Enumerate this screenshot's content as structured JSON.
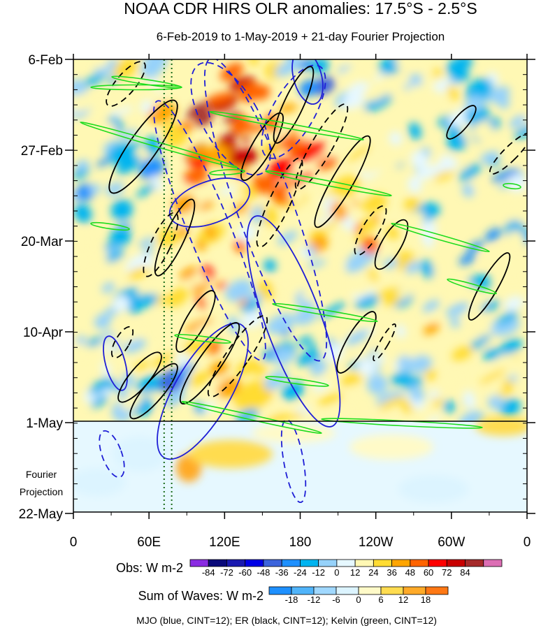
{
  "chart_data": {
    "type": "heatmap",
    "title": "NOAA CDR HIRS OLR anomalies: 17.5°S - 2.5°S",
    "subtitle": "6-Feb-2019 to 1-May-2019 + 21-day Fourier Projection",
    "x_ticks": [
      "0",
      "60E",
      "120E",
      "180",
      "120W",
      "60W",
      "0"
    ],
    "y_ticks": [
      "6-Feb",
      "27-Feb",
      "20-Mar",
      "10-Apr",
      "1-May",
      "22-May"
    ],
    "projection_label": [
      "Fourier",
      "Projection"
    ],
    "obs_colorbar": {
      "label": "Obs: W m-2",
      "levels": [
        "-84",
        "-72",
        "-60",
        "-48",
        "-36",
        "-24",
        "-12",
        "0",
        "12",
        "24",
        "36",
        "48",
        "60",
        "72",
        "84"
      ],
      "colors": [
        "#8a2be2",
        "#0a0a7a",
        "#1a1ab0",
        "#0000e6",
        "#3c64dc",
        "#1e90ff",
        "#00b4f0",
        "#96d2fa",
        "#e6f8ff",
        "#fff8b4",
        "#ffdc32",
        "#ffa500",
        "#ff6400",
        "#ff0000",
        "#c80000",
        "#a52a2a",
        "#dc6eb4"
      ]
    },
    "waves_colorbar": {
      "label": "Sum of Waves: W m-2",
      "levels": [
        "-18",
        "-12",
        "-6",
        "0",
        "6",
        "12",
        "18"
      ],
      "colors": [
        "#1e90ff",
        "#50b4fa",
        "#a0d8ff",
        "#dcf4ff",
        "#fffac8",
        "#ffdc50",
        "#ffaa28",
        "#ff7814"
      ]
    },
    "footer": "MJO (blue, CINT=12); ER (black, CINT=12); Kelvin (green, CINT=12)",
    "contour_colors": {
      "mjo": "#1f1fd6",
      "er": "#000000",
      "kelvin": "#1edc1e"
    },
    "reference_lines": {
      "longitudes_deg_e": [
        72,
        78
      ],
      "style": "dotted",
      "color": "#1a6b1a"
    }
  }
}
